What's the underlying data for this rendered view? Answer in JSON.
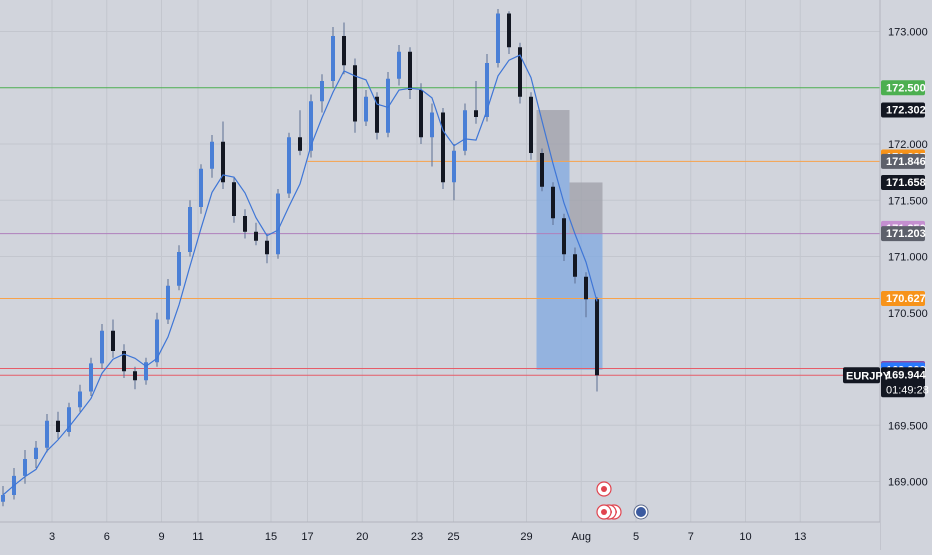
{
  "colors": {
    "background": "#d1d4dc",
    "grid": "#c3c6ce",
    "up_body": "#4a7fd6",
    "down_body": "#131722",
    "wick": "#5b6e92",
    "ma_line": "#3f76d6",
    "green_line": "#4caf50",
    "orange_line": "#f7a24b",
    "purple_line": "#b07fbc",
    "red_line": "#e65c68",
    "blue_box": "#7fa8e0",
    "gray_box": "#9d9fa8",
    "axis_text": "#131722"
  },
  "chart_data": {
    "type": "candlestick",
    "symbol": "EURJPY",
    "countdown": "01:49:28",
    "ylim": [
      168.64,
      173.28
    ],
    "y_ticks": [
      169.0,
      169.5,
      171.0,
      171.5,
      172.0,
      173.0
    ],
    "y_tick_labels": [
      "169.000",
      "169.500",
      "171.000",
      "171.500",
      "172.000",
      "173.000"
    ],
    "x_ticks": [
      {
        "label": "3",
        "day": 3
      },
      {
        "label": "6",
        "day": 6
      },
      {
        "label": "9",
        "day": 9
      },
      {
        "label": "11",
        "day": 11
      },
      {
        "label": "15",
        "day": 15
      },
      {
        "label": "17",
        "day": 17
      },
      {
        "label": "20",
        "day": 20
      },
      {
        "label": "23",
        "day": 23
      },
      {
        "label": "25",
        "day": 25
      },
      {
        "label": "29",
        "day": 29
      },
      {
        "label": "Aug",
        "day": 32
      },
      {
        "label": "5",
        "day": 35
      },
      {
        "label": "7",
        "day": 38
      },
      {
        "label": "10",
        "day": 41
      },
      {
        "label": "13",
        "day": 44
      }
    ],
    "price_labels": [
      {
        "text": "172.500",
        "value": 172.5,
        "color": "#4caf50"
      },
      {
        "text": "172.302",
        "value": 172.302,
        "color": "#131722"
      },
      {
        "text": "171.885",
        "value": 171.885,
        "color": "#f7931a"
      },
      {
        "text": "171.846",
        "value": 171.846,
        "color": "#5d606b"
      },
      {
        "text": "171.658",
        "value": 171.658,
        "color": "#131722"
      },
      {
        "text": "171.500",
        "value": 171.5,
        "color": "",
        "plain": true
      },
      {
        "text": "171.250",
        "value": 171.25,
        "color": "#c48fd0"
      },
      {
        "text": "171.203",
        "value": 171.203,
        "color": "#5d606b"
      },
      {
        "text": "170.627",
        "value": 170.627,
        "color": "#f7931a"
      },
      {
        "text": "170.500",
        "value": 170.5,
        "color": "",
        "plain": true
      },
      {
        "text": "170.004",
        "value": 170.004,
        "color": "#2962ff"
      },
      {
        "text": "170.000",
        "value": 170.0,
        "color": "#f23645"
      },
      {
        "text": "169.993",
        "value": 169.993,
        "color": "#2979ff"
      },
      {
        "text": "169.944",
        "value": 169.944,
        "color": "#131722",
        "current": true
      }
    ],
    "horizontal_lines": [
      {
        "value": 172.5,
        "color": "#4caf50",
        "day_start": 0
      },
      {
        "value": 171.846,
        "color": "#f7a24b",
        "day_start": 17
      },
      {
        "value": 171.203,
        "color": "#b07fbc",
        "day_start": 0
      },
      {
        "value": 170.627,
        "color": "#f7a24b",
        "day_start": 0
      },
      {
        "value": 170.004,
        "color": "#e65c68",
        "day_start": 0
      },
      {
        "value": 169.944,
        "color": "#e65c68",
        "day_start": 0
      }
    ],
    "ohlc": [
      [
        168.82,
        168.96,
        168.78,
        168.88
      ],
      [
        168.88,
        169.12,
        168.84,
        169.05
      ],
      [
        169.05,
        169.28,
        168.98,
        169.2
      ],
      [
        169.2,
        169.36,
        169.12,
        169.3
      ],
      [
        169.3,
        169.6,
        169.26,
        169.54
      ],
      [
        169.54,
        169.62,
        169.38,
        169.44
      ],
      [
        169.44,
        169.7,
        169.4,
        169.66
      ],
      [
        169.66,
        169.86,
        169.62,
        169.8
      ],
      [
        169.8,
        170.1,
        169.76,
        170.05
      ],
      [
        170.05,
        170.4,
        170.0,
        170.34
      ],
      [
        170.34,
        170.44,
        170.1,
        170.16
      ],
      [
        170.16,
        170.22,
        169.92,
        169.98
      ],
      [
        169.98,
        170.02,
        169.82,
        169.9
      ],
      [
        169.9,
        170.1,
        169.86,
        170.06
      ],
      [
        170.06,
        170.5,
        170.02,
        170.44
      ],
      [
        170.44,
        170.8,
        170.4,
        170.74
      ],
      [
        170.74,
        171.1,
        170.7,
        171.04
      ],
      [
        171.04,
        171.5,
        171.0,
        171.44
      ],
      [
        171.44,
        171.82,
        171.38,
        171.78
      ],
      [
        171.78,
        172.08,
        171.7,
        172.02
      ],
      [
        172.02,
        172.2,
        171.6,
        171.66
      ],
      [
        171.66,
        171.7,
        171.3,
        171.36
      ],
      [
        171.36,
        171.42,
        171.16,
        171.22
      ],
      [
        171.22,
        171.3,
        171.1,
        171.14
      ],
      [
        171.14,
        171.2,
        170.94,
        171.02
      ],
      [
        171.02,
        171.6,
        170.98,
        171.56
      ],
      [
        171.56,
        172.1,
        171.52,
        172.06
      ],
      [
        172.06,
        172.3,
        171.9,
        171.94
      ],
      [
        171.94,
        172.44,
        171.88,
        172.38
      ],
      [
        172.38,
        172.62,
        172.28,
        172.56
      ],
      [
        172.56,
        173.04,
        172.5,
        172.96
      ],
      [
        172.96,
        173.08,
        172.62,
        172.7
      ],
      [
        172.7,
        172.76,
        172.1,
        172.2
      ],
      [
        172.2,
        172.48,
        172.16,
        172.42
      ],
      [
        172.42,
        172.46,
        172.04,
        172.1
      ],
      [
        172.1,
        172.64,
        172.06,
        172.58
      ],
      [
        172.58,
        172.88,
        172.52,
        172.82
      ],
      [
        172.82,
        172.86,
        172.4,
        172.48
      ],
      [
        172.48,
        172.54,
        172.0,
        172.06
      ],
      [
        172.06,
        172.36,
        171.8,
        172.28
      ],
      [
        172.28,
        172.32,
        171.6,
        171.66
      ],
      [
        171.66,
        172.0,
        171.5,
        171.94
      ],
      [
        171.94,
        172.36,
        171.9,
        172.3
      ],
      [
        172.3,
        172.56,
        172.18,
        172.24
      ],
      [
        172.24,
        172.8,
        172.2,
        172.72
      ],
      [
        172.72,
        173.2,
        172.68,
        173.16
      ],
      [
        173.16,
        173.18,
        172.8,
        172.86
      ],
      [
        172.86,
        172.9,
        172.36,
        172.42
      ],
      [
        172.42,
        172.46,
        171.86,
        171.92
      ],
      [
        171.92,
        171.96,
        171.58,
        171.62
      ],
      [
        171.62,
        171.66,
        171.28,
        171.34
      ],
      [
        171.34,
        171.38,
        170.96,
        171.02
      ],
      [
        171.02,
        171.08,
        170.76,
        170.82
      ],
      [
        170.82,
        170.86,
        170.46,
        170.62
      ],
      [
        170.62,
        170.64,
        169.8,
        169.944
      ]
    ],
    "ma_window": 4,
    "boxes": [
      {
        "color": "#7fa8e0",
        "from_index": 49,
        "to_index": 51,
        "high": 171.846,
        "low": 169.993
      },
      {
        "color": "#9d9fa8",
        "from_index": 49,
        "to_index": 51,
        "high": 172.302,
        "low": 171.846
      },
      {
        "color": "#7fa8e0",
        "from_index": 52,
        "to_index": 54,
        "high": 171.203,
        "low": 169.993
      },
      {
        "color": "#9d9fa8",
        "from_index": 52,
        "to_index": 54,
        "high": 171.658,
        "low": 171.203
      }
    ],
    "events": [
      {
        "kind": "flag",
        "index": 55,
        "row": 1
      },
      {
        "kind": "flag-multi",
        "index": 55,
        "row": 2
      },
      {
        "kind": "earth",
        "index": 58,
        "row": 2
      }
    ]
  }
}
